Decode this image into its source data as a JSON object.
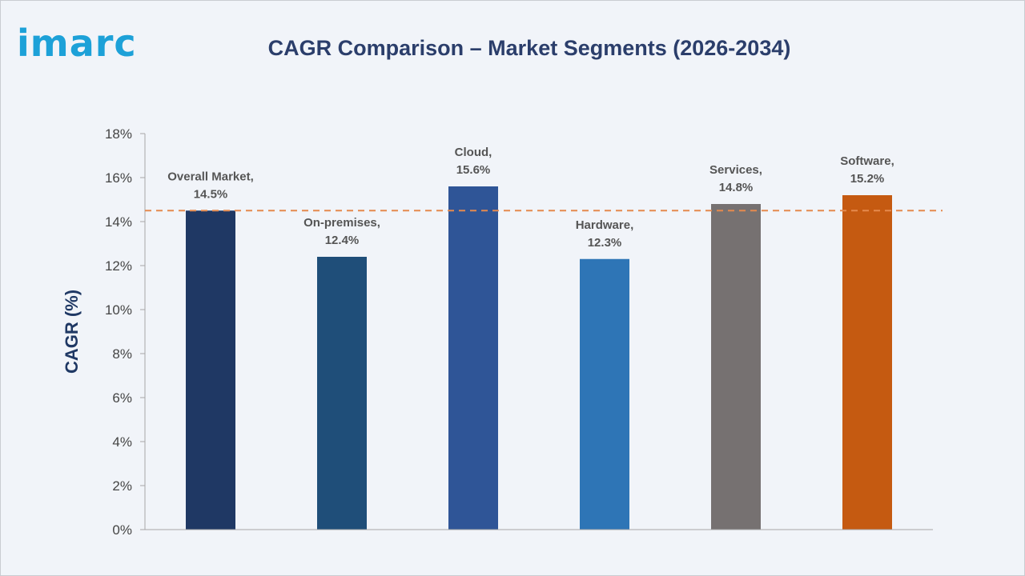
{
  "brand": {
    "logo_text": "imarc",
    "logo_color": "#1da1d8"
  },
  "chart_data": {
    "type": "bar",
    "title": "CAGR Comparison – Market Segments (2026-2034)",
    "ylabel": "CAGR (%)",
    "xlabel": "",
    "ylim": [
      0,
      18
    ],
    "yticks": [
      0,
      2,
      4,
      6,
      8,
      10,
      12,
      14,
      16,
      18
    ],
    "ytick_suffix": "%",
    "grid": false,
    "legend": "none",
    "categories": [
      "Overall Market",
      "On-premises",
      "Cloud",
      "Hardware",
      "Services",
      "Software"
    ],
    "values": [
      14.5,
      12.4,
      15.6,
      12.3,
      14.8,
      15.2
    ],
    "data_labels": [
      [
        "Overall Market,",
        "14.5%"
      ],
      [
        "On-premises,",
        "12.4%"
      ],
      [
        "Cloud,",
        "15.6%"
      ],
      [
        "Hardware,",
        "12.3%"
      ],
      [
        "Services,",
        "14.8%"
      ],
      [
        "Software,",
        "15.2%"
      ]
    ],
    "colors": [
      "#1f3864",
      "#1f4e79",
      "#2f5597",
      "#2e75b6",
      "#767171",
      "#c55a11"
    ],
    "reference_line": {
      "value": 14.5,
      "style": "dashed",
      "color": "#e58a4e"
    }
  }
}
